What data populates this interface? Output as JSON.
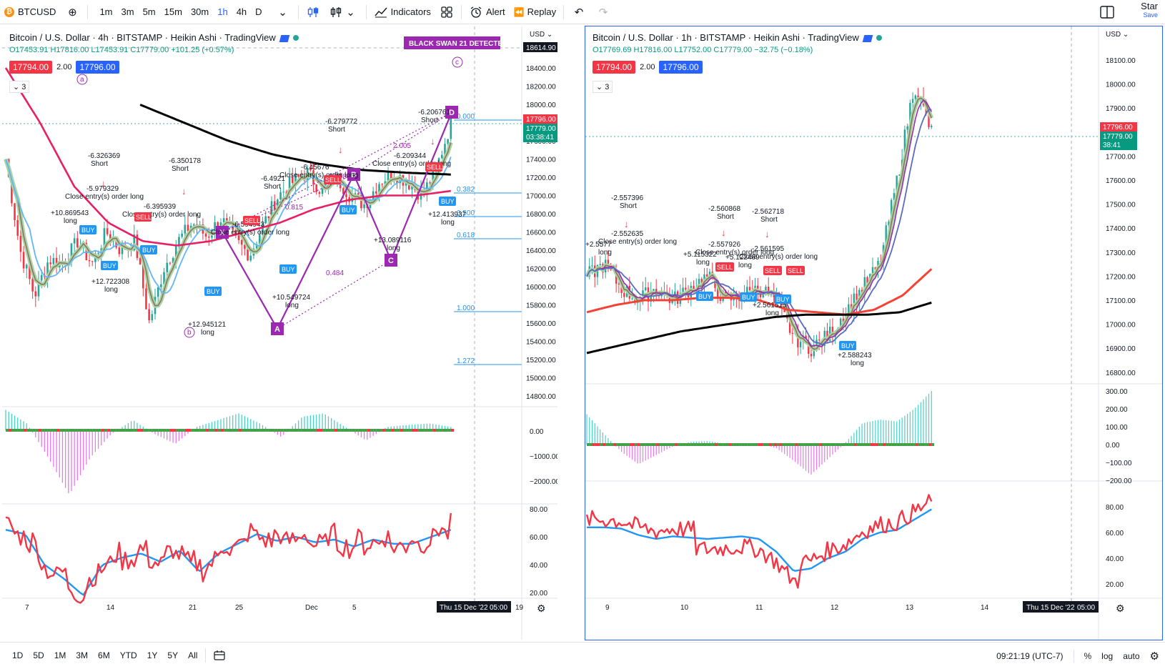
{
  "toolbar": {
    "symbol": "BTCUSD",
    "timeframes": [
      "1m",
      "3m",
      "5m",
      "15m",
      "30m",
      "1h",
      "4h",
      "D"
    ],
    "active_timeframe": "1h",
    "indicators_label": "Indicators",
    "alert_label": "Alert",
    "replay_label": "Replay",
    "star_label": "Star",
    "save_label": "Save"
  },
  "left_chart": {
    "title": "Bitcoin / U.S. Dollar · 4h · BITSTAMP · Heikin Ashi · TradingView",
    "ohlc": "O17453.91 H17816.00 L17453.91 C17779.00 +101.25 (+0.57%)",
    "bid": "17794.00",
    "spread": "2.00",
    "ask": "17796.00",
    "collapse": "3",
    "currency": "USD",
    "price_ticks": [
      "18400.00",
      "18200.00",
      "18000.00",
      "17800.00",
      "17600.00",
      "17400.00",
      "17200.00",
      "17000.00",
      "16800.00",
      "16600.00",
      "16400.00",
      "16200.00",
      "16000.00",
      "15800.00",
      "15600.00",
      "15400.00",
      "15200.00",
      "15000.00",
      "14800.00"
    ],
    "top_label": "18614.90",
    "last_price_red": "17796.00",
    "last_price_green": "17779.00",
    "countdown": "03:38:41",
    "osc_ticks": [
      "0.00",
      "−1000.00",
      "−2000.00"
    ],
    "rsi_ticks": [
      "80.00",
      "60.00",
      "40.00",
      "20.00"
    ],
    "date_ticks": [
      "7",
      "14",
      "21",
      "25",
      "Dec",
      "5",
      "19"
    ],
    "crosshair_date": "Thu 15 Dec '22",
    "crosshair_time": "05:00",
    "black_swan_label": "BLACK SWAN 21 DETECTED",
    "fib_labels": [
      "0.000",
      "0.382",
      "0.500",
      "0.618",
      "1.000",
      "1.272"
    ],
    "pattern_points": [
      "X",
      "A",
      "B",
      "C",
      "D"
    ],
    "wave_labels": [
      "a",
      "b",
      "c"
    ],
    "ratio_labels": [
      "2.005",
      "2.698",
      "0.484",
      "0.815"
    ],
    "annotations": [
      {
        "text": "-6.326369",
        "sub": "Short"
      },
      {
        "text": "-5.979329",
        "sub": "Close entry(s) order long"
      },
      {
        "text": "+10.869543",
        "sub": "long"
      },
      {
        "text": "-6.350178",
        "sub": "Short"
      },
      {
        "text": "-6.395939",
        "sub": "Close entry(s) order long"
      },
      {
        "text": "+12.722308",
        "sub": "long"
      },
      {
        "text": "+12.945121",
        "sub": "long"
      },
      {
        "text": "-6.4921",
        "sub": "Short"
      },
      {
        "text": "-6.594943",
        "sub": "Close entry(s) order long"
      },
      {
        "text": "+10.549724",
        "sub": "long"
      },
      {
        "text": "-6.279772",
        "sub": "Short"
      },
      {
        "text": "-6.45676",
        "sub": "Close entry(s) order long"
      },
      {
        "text": "+13.089116",
        "sub": "long"
      },
      {
        "text": "-6.206761",
        "sub": "Short"
      },
      {
        "text": "-6.209344",
        "sub": "Close entry(s) order long"
      },
      {
        "text": "+12.413937",
        "sub": "long"
      }
    ],
    "buy_label": "BUY",
    "sell_label": "SELL"
  },
  "right_chart": {
    "title": "Bitcoin / U.S. Dollar · 1h · BITSTAMP · Heikin Ashi · TradingView",
    "ohlc": "O17769.69 H17816.00 L17752.00 C17779.00 −32.75 (−0.18%)",
    "bid": "17794.00",
    "spread": "2.00",
    "ask": "17796.00",
    "collapse": "3",
    "currency": "USD",
    "price_ticks": [
      "18100.00",
      "18000.00",
      "17900.00",
      "17800.00",
      "17700.00",
      "17600.00",
      "17500.00",
      "17400.00",
      "17300.00",
      "17200.00",
      "17100.00",
      "17000.00",
      "16900.00",
      "16800.00"
    ],
    "last_price_red": "17796.00",
    "last_price_green": "17779.00",
    "countdown": "38:41",
    "osc_ticks": [
      "300.00",
      "200.00",
      "100.00",
      "0.00",
      "−100.00",
      "−200.00"
    ],
    "rsi_ticks": [
      "80.00",
      "60.00",
      "40.00",
      "20.00"
    ],
    "date_ticks": [
      "9",
      "10",
      "11",
      "12",
      "13",
      "14"
    ],
    "crosshair_date": "Thu 15 Dec '22",
    "crosshair_time": "05:00",
    "annotations": [
      {
        "text": "-2.557396",
        "sub": "Short"
      },
      {
        "text": "-2.552635",
        "sub": "Close entry(s) order long"
      },
      {
        "text": "+2.5577",
        "sub": "long"
      },
      {
        "text": "-2.560868",
        "sub": "Short"
      },
      {
        "text": "-2.557926",
        "sub": "Close entry(s) order long"
      },
      {
        "text": "+5.115322",
        "sub": "long"
      },
      {
        "text": "-2.562718",
        "sub": "Short"
      },
      {
        "text": "-2.561595",
        "sub": "Close entry(s) order long"
      },
      {
        "text": "+5.122469",
        "sub": "long"
      },
      {
        "text": "+2.561515",
        "sub": "long"
      },
      {
        "text": "+2.588243",
        "sub": "long"
      }
    ],
    "buy_label": "BUY",
    "sell_label": "SELL"
  },
  "bottom": {
    "ranges": [
      "1D",
      "5D",
      "1M",
      "3M",
      "6M",
      "YTD",
      "1Y",
      "5Y",
      "All"
    ],
    "clock": "09:21:19 (UTC-7)",
    "percent": "%",
    "log": "log",
    "auto": "auto"
  },
  "colors": {
    "up": "#26a69a",
    "down": "#f23645",
    "accent": "#2962ff",
    "pattern": "#9c27b0"
  }
}
